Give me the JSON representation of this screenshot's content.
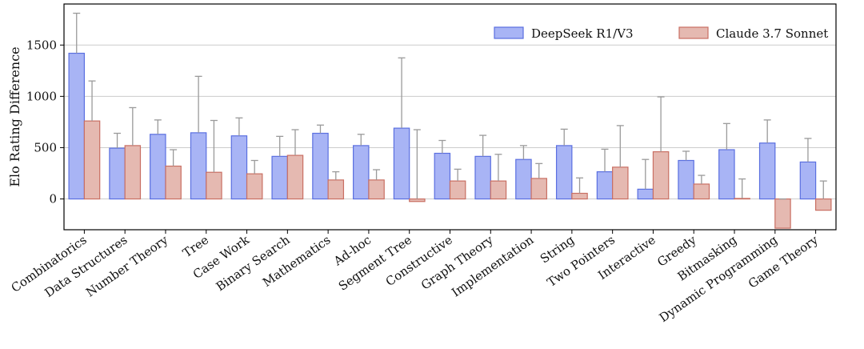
{
  "chart_data": {
    "type": "bar",
    "title": "",
    "xlabel": "",
    "ylabel": "Elo Rating Difference",
    "ylim": [
      -300,
      1900
    ],
    "yticks": [
      0,
      500,
      1000,
      1500
    ],
    "grid": "horizontal",
    "legend_position": "top-right",
    "categories": [
      "Combinatorics",
      "Data Structures",
      "Number Theory",
      "Tree",
      "Case Work",
      "Binary Search",
      "Mathematics",
      "Ad-hoc",
      "Segment Tree",
      "Constructive",
      "Graph Theory",
      "Implementation",
      "String",
      "Two Pointers",
      "Interactive",
      "Greedy",
      "Bitmasking",
      "Dynamic Programming",
      "Game Theory"
    ],
    "series": [
      {
        "name": "DeepSeek R1/V3",
        "fill": "#a8b4f5",
        "stroke": "#5a6fe0",
        "values": [
          1420,
          495,
          630,
          645,
          615,
          415,
          640,
          520,
          690,
          445,
          415,
          385,
          520,
          265,
          95,
          375,
          480,
          545,
          360
        ],
        "err_upper": [
          1810,
          640,
          770,
          1195,
          790,
          610,
          720,
          630,
          1375,
          570,
          620,
          520,
          680,
          485,
          385,
          465,
          735,
          770,
          590
        ]
      },
      {
        "name": "Claude 3.7 Sonnet",
        "fill": "#e5b9b1",
        "stroke": "#c96f63",
        "values": [
          760,
          520,
          320,
          260,
          245,
          425,
          185,
          185,
          -25,
          175,
          175,
          200,
          55,
          310,
          460,
          145,
          5,
          -285,
          -110
        ],
        "err_upper": [
          1150,
          890,
          480,
          765,
          375,
          675,
          265,
          285,
          675,
          290,
          435,
          345,
          205,
          715,
          995,
          230,
          195,
          0,
          175
        ]
      }
    ]
  }
}
